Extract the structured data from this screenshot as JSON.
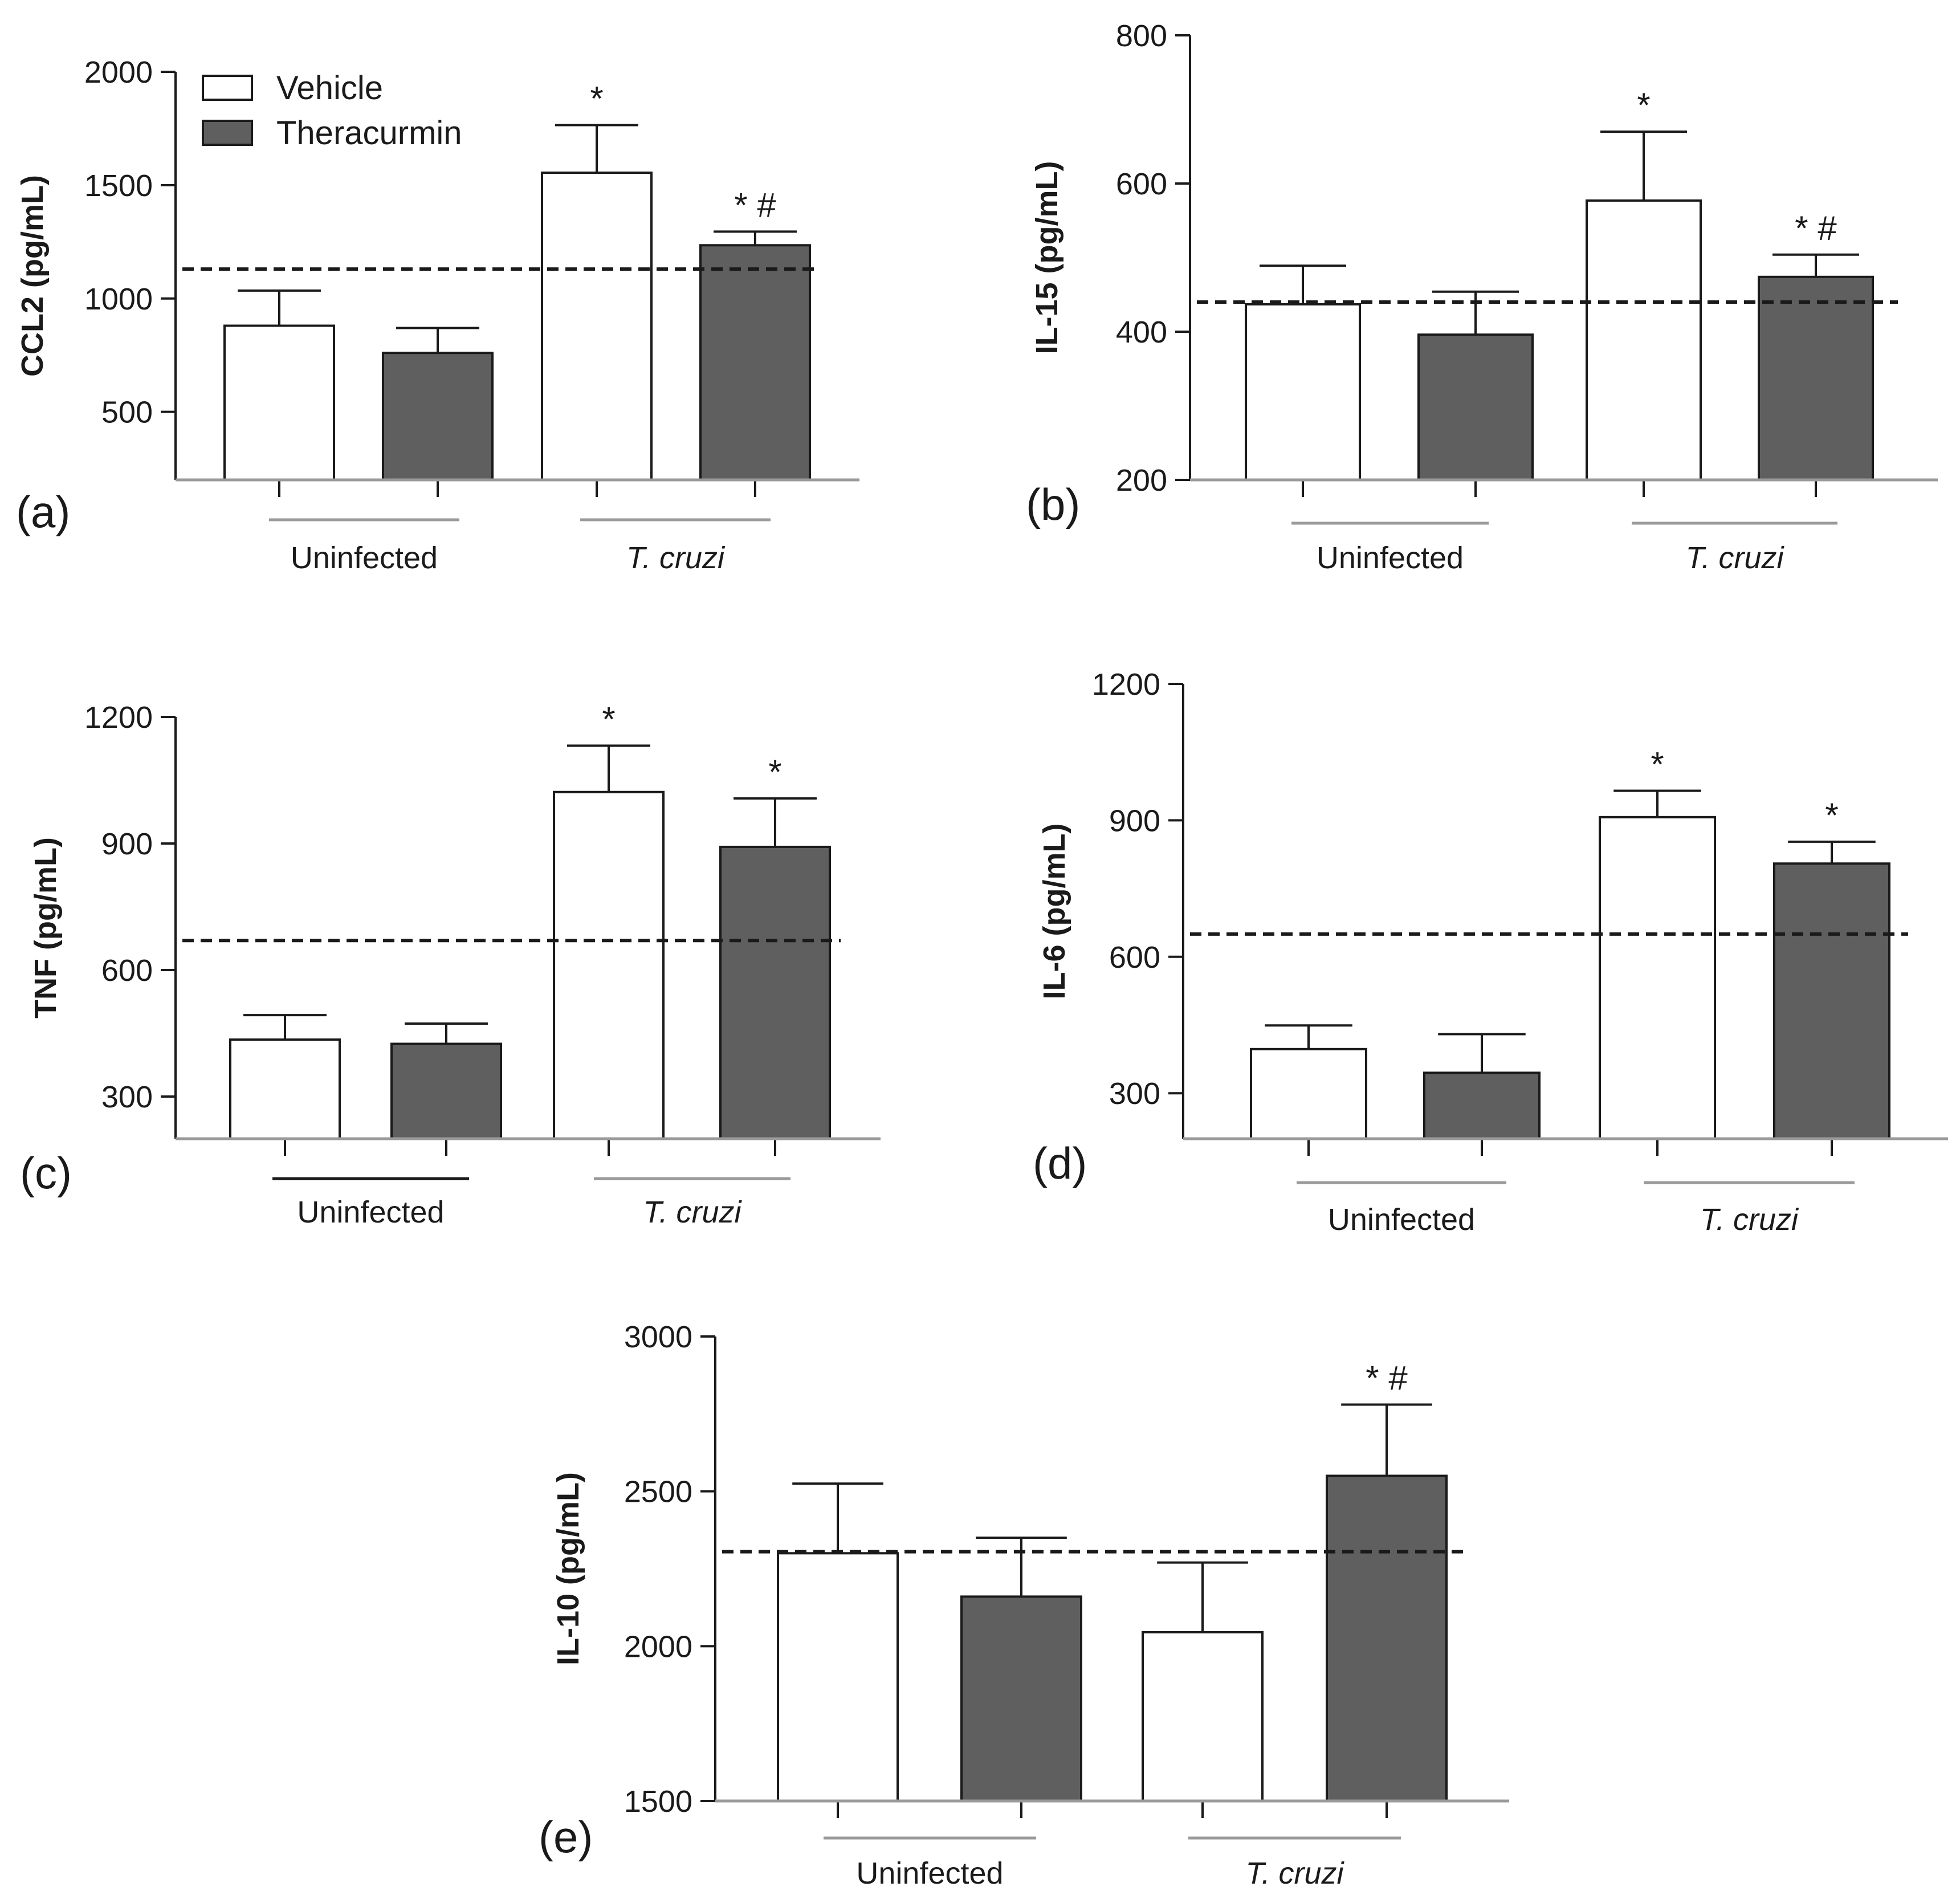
{
  "legend": [
    {
      "label": "Vehicle",
      "color": "#ffffff"
    },
    {
      "label": "Theracurmin",
      "color": "#5f5f5f"
    }
  ],
  "chart_data": [
    {
      "type": "bar",
      "panel": "(a)",
      "ylabel": "CCL2 (pg/mL)",
      "ylim": [
        200,
        2000
      ],
      "yticks": [
        500,
        1000,
        1500,
        2000
      ],
      "groups": [
        "Uninfected",
        "T. cruzi"
      ],
      "group_italic": [
        false,
        true
      ],
      "series": [
        {
          "name": "Vehicle",
          "values": [
            880,
            1555
          ],
          "errors": [
            155,
            210
          ]
        },
        {
          "name": "Theracurmin",
          "values": [
            760,
            1235
          ],
          "errors": [
            110,
            60
          ]
        }
      ],
      "annotations": [
        [
          "",
          ""
        ],
        [
          "*",
          "* #"
        ]
      ],
      "reference_line": 1130
    },
    {
      "type": "bar",
      "panel": "(b)",
      "ylabel": "IL-15 (pg/mL)",
      "ylim": [
        200,
        800
      ],
      "yticks": [
        200,
        400,
        600,
        800
      ],
      "groups": [
        "Uninfected",
        "T. cruzi"
      ],
      "group_italic": [
        false,
        true
      ],
      "series": [
        {
          "name": "Vehicle",
          "values": [
            437,
            577
          ],
          "errors": [
            52,
            93
          ]
        },
        {
          "name": "Theracurmin",
          "values": [
            396,
            474
          ],
          "errors": [
            58,
            30
          ]
        }
      ],
      "annotations": [
        [
          "",
          ""
        ],
        [
          "*",
          "* #"
        ]
      ],
      "reference_line": 440
    },
    {
      "type": "bar",
      "panel": "(c)",
      "ylabel": "TNF (pg/mL)",
      "ylim": [
        200,
        1200
      ],
      "yticks": [
        300,
        600,
        900,
        1200
      ],
      "groups": [
        "Uninfected",
        "T. cruzi"
      ],
      "group_italic": [
        false,
        true
      ],
      "series": [
        {
          "name": "Vehicle",
          "values": [
            435,
            1022
          ],
          "errors": [
            58,
            110
          ]
        },
        {
          "name": "Theracurmin",
          "values": [
            425,
            892
          ],
          "errors": [
            48,
            115
          ]
        }
      ],
      "annotations": [
        [
          "",
          ""
        ],
        [
          "*",
          "*"
        ]
      ],
      "reference_line": 670
    },
    {
      "type": "bar",
      "panel": "(d)",
      "ylabel": "IL-6 (pg/mL)",
      "ylim": [
        200,
        1200
      ],
      "yticks": [
        300,
        600,
        900,
        1200
      ],
      "groups": [
        "Uninfected",
        "T. cruzi"
      ],
      "group_italic": [
        false,
        true
      ],
      "series": [
        {
          "name": "Vehicle",
          "values": [
            397,
            907
          ],
          "errors": [
            52,
            58
          ]
        },
        {
          "name": "Theracurmin",
          "values": [
            345,
            805
          ],
          "errors": [
            85,
            48
          ]
        }
      ],
      "annotations": [
        [
          "",
          ""
        ],
        [
          "*",
          "*"
        ]
      ],
      "reference_line": 650
    },
    {
      "type": "bar",
      "panel": "(e)",
      "ylabel": "IL-10 (pg/mL)",
      "ylim": [
        1500,
        3000
      ],
      "yticks": [
        1500,
        2000,
        2500,
        3000
      ],
      "groups": [
        "Uninfected",
        "T. cruzi"
      ],
      "group_italic": [
        false,
        true
      ],
      "series": [
        {
          "name": "Vehicle",
          "values": [
            2300,
            2045
          ],
          "errors": [
            225,
            225
          ]
        },
        {
          "name": "Theracurmin",
          "values": [
            2160,
            2550
          ],
          "errors": [
            190,
            230
          ]
        }
      ],
      "annotations": [
        [
          "",
          ""
        ],
        [
          "",
          "* #"
        ]
      ],
      "reference_line": 2305
    }
  ]
}
